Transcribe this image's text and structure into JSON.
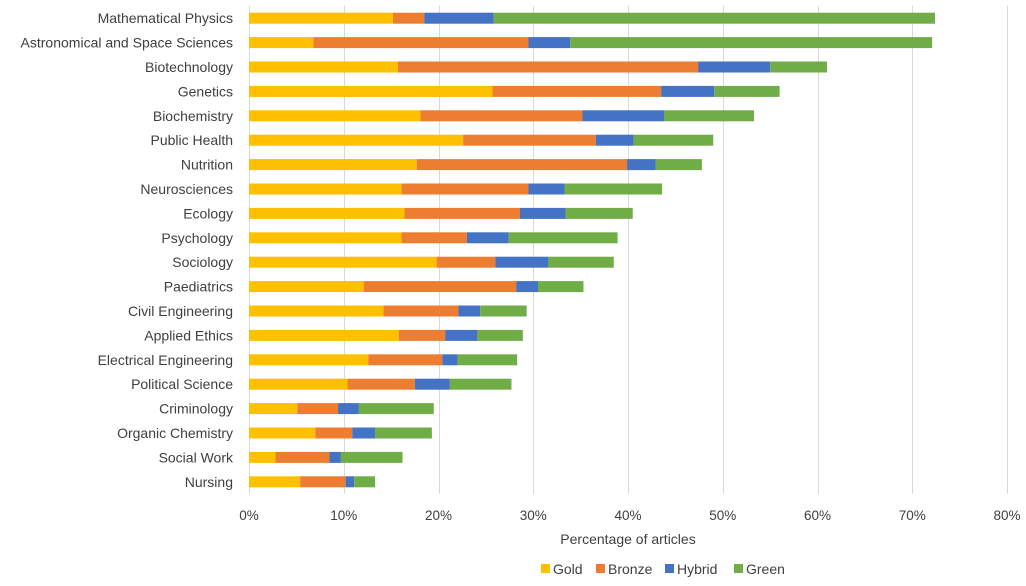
{
  "chart_data": {
    "type": "bar",
    "orientation": "horizontal",
    "stacked": true,
    "xlabel": "Percentage of articles",
    "ylabel": "",
    "xlim": [
      0,
      80
    ],
    "x_ticks": [
      "0%",
      "10%",
      "20%",
      "30%",
      "40%",
      "50%",
      "60%",
      "70%",
      "80%"
    ],
    "grid": true,
    "legend_position": "bottom",
    "categories": [
      "Mathematical Physics",
      "Astronomical and Space Sciences",
      "Biotechnology",
      "Genetics",
      "Biochemistry",
      "Public Health",
      "Nutrition",
      "Neurosciences",
      "Ecology",
      "Psychology",
      "Sociology",
      "Paediatrics",
      "Civil Engineering",
      "Applied Ethics",
      "Electrical Engineering",
      "Political Science",
      "Criminology",
      "Organic Chemistry",
      "Social Work",
      "Nursing"
    ],
    "series": [
      {
        "name": "Gold",
        "color": "#ffc000",
        "values": [
          15.2,
          6.8,
          15.7,
          25.7,
          18.1,
          22.6,
          17.7,
          16.1,
          16.4,
          16.1,
          19.8,
          12.1,
          14.2,
          15.8,
          12.6,
          10.4,
          5.1,
          7.0,
          2.8,
          5.4
        ]
      },
      {
        "name": "Bronze",
        "color": "#ed7d31",
        "values": [
          3.3,
          22.7,
          31.7,
          17.8,
          17.1,
          14.0,
          22.2,
          13.4,
          12.2,
          6.9,
          6.2,
          16.1,
          7.9,
          4.9,
          7.8,
          7.1,
          4.3,
          3.9,
          5.7,
          4.8
        ]
      },
      {
        "name": "Hybrid",
        "color": "#4472c4",
        "values": [
          7.3,
          4.4,
          7.6,
          5.6,
          8.6,
          4.0,
          3.0,
          3.8,
          4.8,
          4.4,
          5.6,
          2.3,
          2.3,
          3.4,
          1.6,
          3.7,
          2.2,
          2.4,
          1.2,
          0.9
        ]
      },
      {
        "name": "Green",
        "color": "#70ad47",
        "values": [
          46.6,
          38.2,
          6.0,
          6.9,
          9.5,
          8.4,
          4.9,
          10.3,
          7.1,
          11.5,
          6.9,
          4.8,
          4.9,
          4.8,
          6.3,
          6.5,
          7.9,
          6.0,
          6.5,
          2.2
        ]
      }
    ]
  }
}
